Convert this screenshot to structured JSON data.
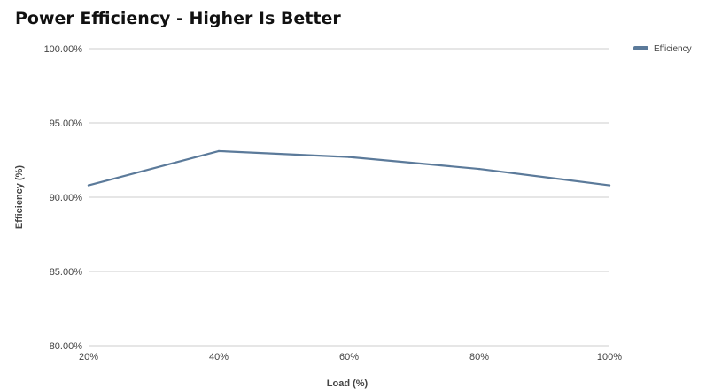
{
  "chart_data": {
    "type": "line",
    "title": "Power Efficiency - Higher Is Better",
    "xlabel": "Load (%)",
    "ylabel": "Efficiency (%)",
    "categories": [
      "20%",
      "40%",
      "60%",
      "80%",
      "100%"
    ],
    "series": [
      {
        "name": "Efficiency",
        "values": [
          90.8,
          93.1,
          92.7,
          91.9,
          90.8
        ],
        "color": "#5b7a9a"
      }
    ],
    "ylim": [
      80,
      100
    ],
    "yticks": [
      {
        "value": 100,
        "label": "100.00%"
      },
      {
        "value": 95,
        "label": "95.00%"
      },
      {
        "value": 90,
        "label": "90.00%"
      },
      {
        "value": 85,
        "label": "85.00%"
      },
      {
        "value": 80,
        "label": "80.00%"
      }
    ],
    "grid": true,
    "legend_position": "top-right",
    "colors": {
      "gridline": "#cccccc",
      "text": "#444444"
    }
  }
}
